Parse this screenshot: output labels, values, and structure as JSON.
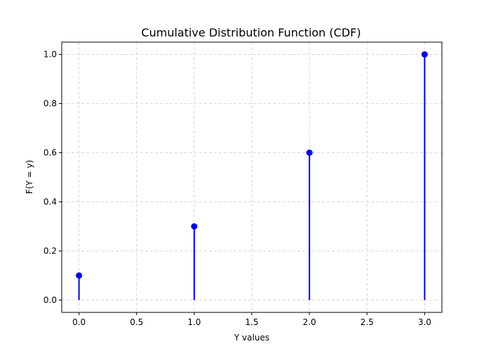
{
  "chart_data": {
    "type": "stem",
    "title": "Cumulative Distribution Function (CDF)",
    "xlabel": "Y values",
    "ylabel": "F(Y = y)",
    "xlim": [
      -0.15,
      3.15
    ],
    "ylim": [
      -0.05,
      1.05
    ],
    "xticks": [
      0.0,
      0.5,
      1.0,
      1.5,
      2.0,
      2.5,
      3.0
    ],
    "xtick_labels": [
      "0.0",
      "0.5",
      "1.0",
      "1.5",
      "2.0",
      "2.5",
      "3.0"
    ],
    "yticks": [
      0.0,
      0.2,
      0.4,
      0.6,
      0.8,
      1.0
    ],
    "ytick_labels": [
      "0.0",
      "0.2",
      "0.4",
      "0.6",
      "0.8",
      "1.0"
    ],
    "grid": true,
    "color": "#0000ff",
    "grid_color": "#cccccc",
    "series": [
      {
        "x": [
          0,
          1,
          2,
          3
        ],
        "y": [
          0.1,
          0.3,
          0.6,
          1.0
        ]
      }
    ]
  }
}
